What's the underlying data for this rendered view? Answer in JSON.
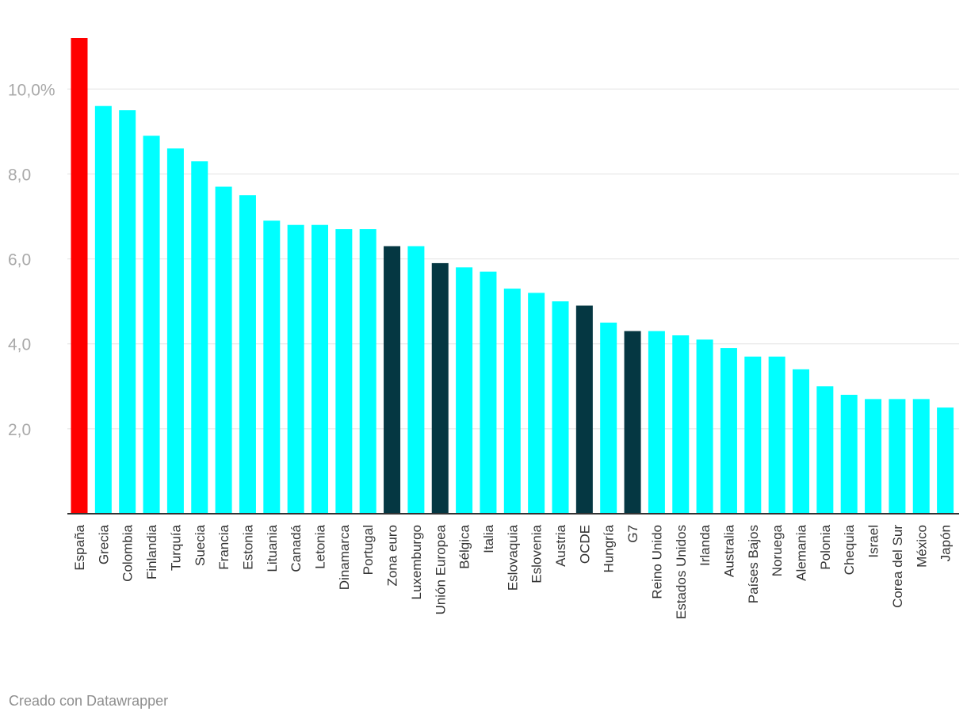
{
  "chart_data": {
    "type": "bar",
    "categories": [
      "España",
      "Grecia",
      "Colombia",
      "Finlandia",
      "Turquía",
      "Suecia",
      "Francia",
      "Estonia",
      "Lituania",
      "Canadá",
      "Letonia",
      "Dinamarca",
      "Portugal",
      "Zona euro",
      "Luxemburgo",
      "Unión Europea",
      "Bélgica",
      "Italia",
      "Eslovaquia",
      "Eslovenia",
      "Austria",
      "OCDE",
      "Hungría",
      "G7",
      "Reino Unido",
      "Estados Unidos",
      "Irlanda",
      "Australia",
      "Países Bajos",
      "Noruega",
      "Alemania",
      "Polonia",
      "Chequia",
      "Israel",
      "Corea del Sur",
      "México",
      "Japón"
    ],
    "values": [
      11.2,
      9.6,
      9.5,
      8.9,
      8.6,
      8.3,
      7.7,
      7.5,
      6.9,
      6.8,
      6.8,
      6.7,
      6.7,
      6.3,
      6.3,
      5.9,
      5.8,
      5.7,
      5.3,
      5.2,
      5.0,
      4.9,
      4.5,
      4.3,
      4.3,
      4.2,
      4.1,
      3.9,
      3.7,
      3.7,
      3.4,
      3.0,
      2.8,
      2.7,
      2.7,
      2.7,
      2.5
    ],
    "bar_colors": [
      "#ff0000",
      "#00ffff",
      "#00ffff",
      "#00ffff",
      "#00ffff",
      "#00ffff",
      "#00ffff",
      "#00ffff",
      "#00ffff",
      "#00ffff",
      "#00ffff",
      "#00ffff",
      "#00ffff",
      "#053742",
      "#00ffff",
      "#053742",
      "#00ffff",
      "#00ffff",
      "#00ffff",
      "#00ffff",
      "#00ffff",
      "#053742",
      "#00ffff",
      "#053742",
      "#00ffff",
      "#00ffff",
      "#00ffff",
      "#00ffff",
      "#00ffff",
      "#00ffff",
      "#00ffff",
      "#00ffff",
      "#00ffff",
      "#00ffff",
      "#00ffff",
      "#00ffff",
      "#00ffff"
    ],
    "y_ticks": [
      {
        "value": 2,
        "label": "2,0"
      },
      {
        "value": 4,
        "label": "4,0"
      },
      {
        "value": 6,
        "label": "6,0"
      },
      {
        "value": 8,
        "label": "8,0"
      },
      {
        "value": 10,
        "label": "10,0%"
      }
    ],
    "ylim": [
      0,
      11.2
    ],
    "grid": true,
    "colors": {
      "highlight": "#ff0000",
      "default": "#00ffff",
      "aggregate": "#053742",
      "grid": "#e2e2e2",
      "axis": "#333333"
    }
  },
  "footer": {
    "credit": "Creado con Datawrapper"
  }
}
